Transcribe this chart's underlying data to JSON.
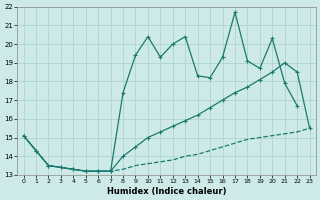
{
  "xlabel": "Humidex (Indice chaleur)",
  "bg_color": "#ceeae8",
  "grid_color": "#aed4d2",
  "line_color": "#1a7a6e",
  "xlim": [
    -0.5,
    23.5
  ],
  "ylim": [
    13,
    22
  ],
  "xticks": [
    0,
    1,
    2,
    3,
    4,
    5,
    6,
    7,
    8,
    9,
    10,
    11,
    12,
    13,
    14,
    15,
    16,
    17,
    18,
    19,
    20,
    21,
    22,
    23
  ],
  "yticks": [
    13,
    14,
    15,
    16,
    17,
    18,
    19,
    20,
    21,
    22
  ],
  "series1_x": [
    0,
    1,
    2,
    3,
    4,
    5,
    6,
    7,
    8,
    9,
    10,
    11,
    12,
    13,
    14,
    15,
    16,
    17,
    18,
    19,
    20,
    21,
    22
  ],
  "series1_y": [
    15.1,
    14.3,
    13.5,
    13.4,
    13.3,
    13.2,
    13.2,
    13.2,
    17.4,
    19.4,
    20.4,
    19.3,
    20.0,
    20.4,
    18.3,
    18.2,
    19.3,
    21.7,
    19.1,
    18.7,
    20.3,
    17.9,
    16.7
  ],
  "series2_x": [
    0,
    1,
    2,
    3,
    4,
    5,
    6,
    7,
    8,
    9,
    10,
    11,
    12,
    13,
    14,
    15,
    16,
    17,
    18,
    19,
    20,
    21,
    22,
    23
  ],
  "series2_y": [
    15.1,
    14.3,
    13.5,
    13.4,
    13.3,
    13.2,
    13.2,
    13.2,
    14.0,
    14.5,
    15.0,
    15.3,
    15.6,
    15.9,
    16.2,
    16.6,
    17.0,
    17.4,
    17.7,
    18.1,
    18.5,
    19.0,
    18.5,
    15.5
  ],
  "series3_x": [
    0,
    1,
    2,
    3,
    4,
    5,
    6,
    7,
    8,
    9,
    10,
    11,
    12,
    13,
    14,
    15,
    16,
    17,
    18,
    19,
    20,
    21,
    22,
    23
  ],
  "series3_y": [
    15.1,
    14.3,
    13.5,
    13.4,
    13.3,
    13.2,
    13.2,
    13.2,
    13.3,
    13.5,
    13.6,
    13.7,
    13.8,
    14.0,
    14.1,
    14.3,
    14.5,
    14.7,
    14.9,
    15.0,
    15.1,
    15.2,
    15.3,
    15.5
  ]
}
